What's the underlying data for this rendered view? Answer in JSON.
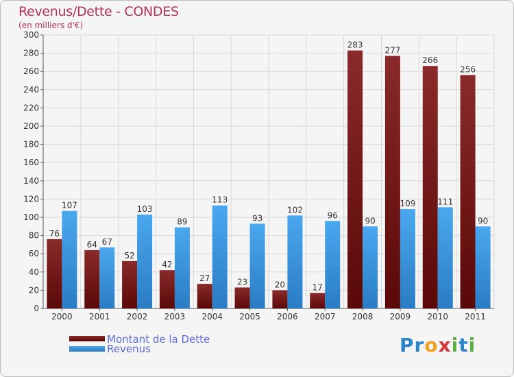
{
  "title": "Revenus/Dette - CONDES",
  "subtitle": "(en milliers d'€)",
  "logo": {
    "letters": [
      {
        "ch": "P",
        "color": "#2a86c8"
      },
      {
        "ch": "r",
        "color": "#2a86c8"
      },
      {
        "ch": "o",
        "color": "#f0a020"
      },
      {
        "ch": "x",
        "color": "#d23a3a"
      },
      {
        "ch": "i",
        "color": "#5cb040"
      },
      {
        "ch": "t",
        "color": "#2a86c8"
      },
      {
        "ch": "i",
        "color": "#5cb040"
      }
    ]
  },
  "colors": {
    "dette": "#7a1c1c",
    "revenus": "#3a9be0",
    "grid": "#d8d8d8",
    "text": "#333333"
  },
  "chart_data": {
    "type": "bar",
    "title": "Revenus/Dette - CONDES",
    "subtitle": "(en milliers d'€)",
    "categories": [
      "2000",
      "2001",
      "2002",
      "2003",
      "2004",
      "2005",
      "2006",
      "2007",
      "2008",
      "2009",
      "2010",
      "2011"
    ],
    "series": [
      {
        "name": "Montant de la Dette",
        "values": [
          76,
          64,
          52,
          42,
          27,
          23,
          20,
          17,
          283,
          277,
          266,
          256
        ]
      },
      {
        "name": "Revenus",
        "values": [
          107,
          67,
          103,
          89,
          113,
          93,
          102,
          96,
          90,
          109,
          111,
          90
        ]
      }
    ],
    "ylim": [
      0,
      300
    ],
    "ytick_step": 20,
    "grid": true,
    "legend": "bottom-left",
    "data_labels": true
  }
}
